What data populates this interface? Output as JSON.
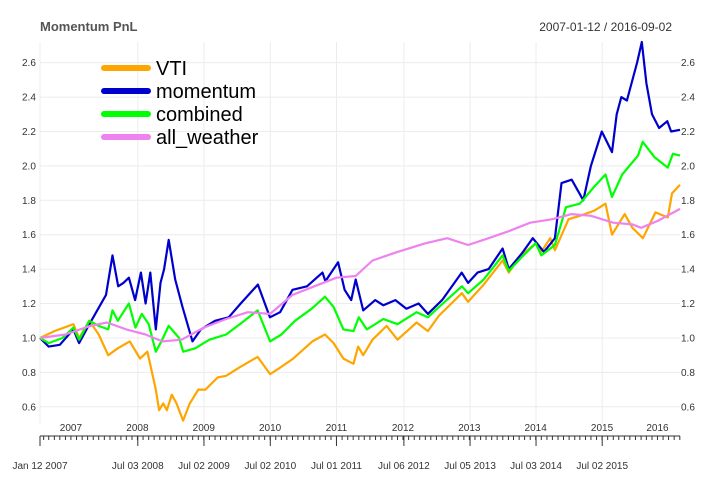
{
  "chart_data": {
    "type": "line",
    "title": "Momentum PnL",
    "date_range": "2007-01-12 / 2016-09-02",
    "xlim": [
      "2007-01-12",
      "2016-09-02"
    ],
    "ylim": [
      0.5,
      2.72
    ],
    "y_ticks": [
      0.6,
      0.8,
      1.0,
      1.2,
      1.4,
      1.6,
      1.8,
      2.0,
      2.2,
      2.4,
      2.6
    ],
    "y_tick_labels": [
      "0.6",
      "0.8",
      "1.0",
      "1.2",
      "1.4",
      "1.6",
      "1.8",
      "2.0",
      "2.2",
      "2.4",
      "2.6"
    ],
    "year_labels": [
      {
        "label": "2007",
        "date": "2007-07-01"
      },
      {
        "label": "2008",
        "date": "2008-07-01"
      },
      {
        "label": "2009",
        "date": "2009-07-01"
      },
      {
        "label": "2010",
        "date": "2010-07-01"
      },
      {
        "label": "2011",
        "date": "2011-07-01"
      },
      {
        "label": "2012",
        "date": "2012-07-01"
      },
      {
        "label": "2013",
        "date": "2013-07-01"
      },
      {
        "label": "2014",
        "date": "2014-07-01"
      },
      {
        "label": "2015",
        "date": "2015-07-01"
      },
      {
        "label": "2016",
        "date": "2016-05-01"
      }
    ],
    "x_labels": [
      {
        "label": "Jan 12 2007",
        "date": "2007-01-12"
      },
      {
        "label": "Jul 03 2008",
        "date": "2008-07-03"
      },
      {
        "label": "Jul 02 2009",
        "date": "2009-07-02"
      },
      {
        "label": "Jul 02 2010",
        "date": "2010-07-02"
      },
      {
        "label": "Jul 01 2011",
        "date": "2011-07-01"
      },
      {
        "label": "Jul 06 2012",
        "date": "2012-07-06"
      },
      {
        "label": "Jul 05 2013",
        "date": "2013-07-05"
      },
      {
        "label": "Jul 03 2014",
        "date": "2014-07-03"
      },
      {
        "label": "Jul 02 2015",
        "date": "2015-07-02"
      }
    ],
    "grid": true,
    "legend_position": "top-left",
    "series": [
      {
        "name": "VTI",
        "color": "#FFA500",
        "points": [
          [
            "2007-01-12",
            1.0
          ],
          [
            "2007-04-01",
            1.04
          ],
          [
            "2007-07-15",
            1.08
          ],
          [
            "2007-08-15",
            1.0
          ],
          [
            "2007-10-10",
            1.1
          ],
          [
            "2007-12-01",
            1.02
          ],
          [
            "2008-01-22",
            0.9
          ],
          [
            "2008-03-15",
            0.94
          ],
          [
            "2008-05-20",
            0.98
          ],
          [
            "2008-07-15",
            0.88
          ],
          [
            "2008-08-25",
            0.92
          ],
          [
            "2008-10-10",
            0.7
          ],
          [
            "2008-10-28",
            0.58
          ],
          [
            "2008-11-20",
            0.62
          ],
          [
            "2008-12-10",
            0.58
          ],
          [
            "2009-01-06",
            0.67
          ],
          [
            "2009-02-01",
            0.62
          ],
          [
            "2009-03-09",
            0.52
          ],
          [
            "2009-04-15",
            0.62
          ],
          [
            "2009-06-01",
            0.7
          ],
          [
            "2009-07-10",
            0.7
          ],
          [
            "2009-09-15",
            0.77
          ],
          [
            "2009-11-01",
            0.78
          ],
          [
            "2010-01-15",
            0.83
          ],
          [
            "2010-04-23",
            0.89
          ],
          [
            "2010-07-01",
            0.79
          ],
          [
            "2010-08-15",
            0.82
          ],
          [
            "2010-11-05",
            0.88
          ],
          [
            "2011-02-18",
            0.98
          ],
          [
            "2011-04-29",
            1.02
          ],
          [
            "2011-06-15",
            0.97
          ],
          [
            "2011-08-08",
            0.88
          ],
          [
            "2011-10-03",
            0.85
          ],
          [
            "2011-10-28",
            0.95
          ],
          [
            "2011-11-25",
            0.9
          ],
          [
            "2012-01-15",
            0.99
          ],
          [
            "2012-04-02",
            1.07
          ],
          [
            "2012-06-01",
            0.99
          ],
          [
            "2012-09-14",
            1.09
          ],
          [
            "2012-11-15",
            1.04
          ],
          [
            "2013-01-15",
            1.13
          ],
          [
            "2013-05-21",
            1.26
          ],
          [
            "2013-06-24",
            1.21
          ],
          [
            "2013-09-18",
            1.31
          ],
          [
            "2013-12-31",
            1.45
          ],
          [
            "2014-02-03",
            1.38
          ],
          [
            "2014-04-01",
            1.47
          ],
          [
            "2014-07-01",
            1.55
          ],
          [
            "2014-08-01",
            1.5
          ],
          [
            "2014-09-19",
            1.58
          ],
          [
            "2014-10-15",
            1.51
          ],
          [
            "2014-12-29",
            1.69
          ],
          [
            "2015-03-01",
            1.71
          ],
          [
            "2015-05-20",
            1.74
          ],
          [
            "2015-07-20",
            1.78
          ],
          [
            "2015-08-25",
            1.6
          ],
          [
            "2015-11-03",
            1.72
          ],
          [
            "2015-12-15",
            1.64
          ],
          [
            "2016-02-11",
            1.58
          ],
          [
            "2016-04-20",
            1.73
          ],
          [
            "2016-06-27",
            1.7
          ],
          [
            "2016-07-20",
            1.84
          ],
          [
            "2016-09-02",
            1.89
          ]
        ]
      },
      {
        "name": "momentum",
        "color": "#0000CD",
        "points": [
          [
            "2007-01-12",
            1.0
          ],
          [
            "2007-03-01",
            0.95
          ],
          [
            "2007-05-01",
            0.96
          ],
          [
            "2007-07-15",
            1.05
          ],
          [
            "2007-08-15",
            0.97
          ],
          [
            "2007-10-10",
            1.08
          ],
          [
            "2007-11-01",
            1.12
          ],
          [
            "2008-01-10",
            1.25
          ],
          [
            "2008-02-15",
            1.48
          ],
          [
            "2008-03-17",
            1.3
          ],
          [
            "2008-04-15",
            1.32
          ],
          [
            "2008-05-15",
            1.35
          ],
          [
            "2008-06-18",
            1.22
          ],
          [
            "2008-07-20",
            1.38
          ],
          [
            "2008-08-15",
            1.2
          ],
          [
            "2008-09-10",
            1.38
          ],
          [
            "2008-10-10",
            1.05
          ],
          [
            "2008-11-05",
            1.32
          ],
          [
            "2008-11-25",
            1.4
          ],
          [
            "2008-12-20",
            1.57
          ],
          [
            "2009-01-25",
            1.34
          ],
          [
            "2009-03-06",
            1.18
          ],
          [
            "2009-04-30",
            0.98
          ],
          [
            "2009-06-15",
            1.05
          ],
          [
            "2009-09-01",
            1.1
          ],
          [
            "2009-11-15",
            1.12
          ],
          [
            "2010-01-20",
            1.2
          ],
          [
            "2010-04-25",
            1.31
          ],
          [
            "2010-06-30",
            1.12
          ],
          [
            "2010-08-25",
            1.15
          ],
          [
            "2010-11-01",
            1.28
          ],
          [
            "2011-01-20",
            1.3
          ],
          [
            "2011-04-15",
            1.38
          ],
          [
            "2011-05-01",
            1.33
          ],
          [
            "2011-07-10",
            1.44
          ],
          [
            "2011-08-15",
            1.28
          ],
          [
            "2011-09-20",
            1.22
          ],
          [
            "2011-10-15",
            1.34
          ],
          [
            "2011-11-25",
            1.16
          ],
          [
            "2012-01-30",
            1.22
          ],
          [
            "2012-03-15",
            1.19
          ],
          [
            "2012-05-20",
            1.22
          ],
          [
            "2012-07-20",
            1.17
          ],
          [
            "2012-09-25",
            1.2
          ],
          [
            "2012-11-15",
            1.14
          ],
          [
            "2013-02-01",
            1.22
          ],
          [
            "2013-05-20",
            1.38
          ],
          [
            "2013-06-24",
            1.32
          ],
          [
            "2013-08-15",
            1.38
          ],
          [
            "2013-10-15",
            1.4
          ],
          [
            "2013-12-31",
            1.52
          ],
          [
            "2014-02-03",
            1.4
          ],
          [
            "2014-04-15",
            1.49
          ],
          [
            "2014-06-15",
            1.58
          ],
          [
            "2014-08-15",
            1.5
          ],
          [
            "2014-10-15",
            1.58
          ],
          [
            "2014-11-20",
            1.9
          ],
          [
            "2015-01-15",
            1.92
          ],
          [
            "2015-03-20",
            1.8
          ],
          [
            "2015-05-01",
            2.0
          ],
          [
            "2015-06-30",
            2.2
          ],
          [
            "2015-08-25",
            2.08
          ],
          [
            "2015-09-20",
            2.3
          ],
          [
            "2015-10-15",
            2.4
          ],
          [
            "2015-11-15",
            2.38
          ],
          [
            "2016-01-10",
            2.6
          ],
          [
            "2016-02-05",
            2.72
          ],
          [
            "2016-03-01",
            2.48
          ],
          [
            "2016-04-01",
            2.3
          ],
          [
            "2016-05-10",
            2.22
          ],
          [
            "2016-06-24",
            2.26
          ],
          [
            "2016-07-15",
            2.2
          ],
          [
            "2016-09-02",
            2.21
          ]
        ]
      },
      {
        "name": "combined",
        "color": "#00FF00",
        "points": [
          [
            "2007-01-12",
            1.0
          ],
          [
            "2007-03-01",
            0.97
          ],
          [
            "2007-05-15",
            1.0
          ],
          [
            "2007-07-15",
            1.06
          ],
          [
            "2007-08-15",
            0.99
          ],
          [
            "2007-10-10",
            1.1
          ],
          [
            "2007-12-01",
            1.07
          ],
          [
            "2008-01-22",
            1.05
          ],
          [
            "2008-02-15",
            1.16
          ],
          [
            "2008-03-15",
            1.1
          ],
          [
            "2008-05-15",
            1.2
          ],
          [
            "2008-06-20",
            1.06
          ],
          [
            "2008-07-25",
            1.14
          ],
          [
            "2008-09-01",
            1.08
          ],
          [
            "2008-10-10",
            0.92
          ],
          [
            "2008-11-10",
            0.98
          ],
          [
            "2008-12-20",
            1.07
          ],
          [
            "2009-02-15",
            1.0
          ],
          [
            "2009-03-10",
            0.92
          ],
          [
            "2009-05-15",
            0.94
          ],
          [
            "2009-08-01",
            0.99
          ],
          [
            "2009-11-01",
            1.02
          ],
          [
            "2010-01-15",
            1.08
          ],
          [
            "2010-04-23",
            1.16
          ],
          [
            "2010-07-01",
            0.98
          ],
          [
            "2010-09-01",
            1.02
          ],
          [
            "2010-11-15",
            1.1
          ],
          [
            "2011-02-15",
            1.17
          ],
          [
            "2011-04-29",
            1.24
          ],
          [
            "2011-06-15",
            1.18
          ],
          [
            "2011-08-08",
            1.05
          ],
          [
            "2011-10-03",
            1.04
          ],
          [
            "2011-11-01",
            1.12
          ],
          [
            "2011-12-15",
            1.05
          ],
          [
            "2012-03-15",
            1.11
          ],
          [
            "2012-06-01",
            1.08
          ],
          [
            "2012-09-14",
            1.15
          ],
          [
            "2012-11-15",
            1.12
          ],
          [
            "2013-01-15",
            1.18
          ],
          [
            "2013-05-21",
            1.3
          ],
          [
            "2013-06-24",
            1.26
          ],
          [
            "2013-09-18",
            1.34
          ],
          [
            "2013-12-31",
            1.48
          ],
          [
            "2014-02-03",
            1.39
          ],
          [
            "2014-04-15",
            1.47
          ],
          [
            "2014-07-01",
            1.55
          ],
          [
            "2014-08-01",
            1.48
          ],
          [
            "2014-10-15",
            1.54
          ],
          [
            "2014-12-15",
            1.76
          ],
          [
            "2015-03-01",
            1.78
          ],
          [
            "2015-05-20",
            1.88
          ],
          [
            "2015-07-20",
            1.95
          ],
          [
            "2015-08-25",
            1.82
          ],
          [
            "2015-10-20",
            1.95
          ],
          [
            "2016-01-15",
            2.06
          ],
          [
            "2016-02-10",
            2.14
          ],
          [
            "2016-04-15",
            2.05
          ],
          [
            "2016-06-27",
            1.99
          ],
          [
            "2016-07-25",
            2.07
          ],
          [
            "2016-09-02",
            2.06
          ]
        ]
      },
      {
        "name": "all_weather",
        "color": "#EE82EE",
        "points": [
          [
            "2007-01-12",
            1.0
          ],
          [
            "2007-06-01",
            1.02
          ],
          [
            "2007-10-15",
            1.07
          ],
          [
            "2008-01-15",
            1.09
          ],
          [
            "2008-05-01",
            1.05
          ],
          [
            "2008-08-15",
            1.02
          ],
          [
            "2008-11-15",
            0.98
          ],
          [
            "2009-03-01",
            0.99
          ],
          [
            "2009-07-01",
            1.06
          ],
          [
            "2009-11-01",
            1.11
          ],
          [
            "2010-03-01",
            1.15
          ],
          [
            "2010-07-01",
            1.14
          ],
          [
            "2010-11-01",
            1.25
          ],
          [
            "2011-03-01",
            1.3
          ],
          [
            "2011-07-01",
            1.35
          ],
          [
            "2011-10-15",
            1.36
          ],
          [
            "2012-01-15",
            1.45
          ],
          [
            "2012-06-01",
            1.5
          ],
          [
            "2012-11-01",
            1.55
          ],
          [
            "2013-03-01",
            1.58
          ],
          [
            "2013-06-24",
            1.54
          ],
          [
            "2013-10-15",
            1.58
          ],
          [
            "2014-02-01",
            1.62
          ],
          [
            "2014-06-01",
            1.67
          ],
          [
            "2014-10-01",
            1.69
          ],
          [
            "2015-01-15",
            1.72
          ],
          [
            "2015-05-01",
            1.71
          ],
          [
            "2015-09-01",
            1.67
          ],
          [
            "2015-12-15",
            1.66
          ],
          [
            "2016-02-01",
            1.64
          ],
          [
            "2016-05-01",
            1.68
          ],
          [
            "2016-09-02",
            1.75
          ]
        ]
      }
    ]
  }
}
